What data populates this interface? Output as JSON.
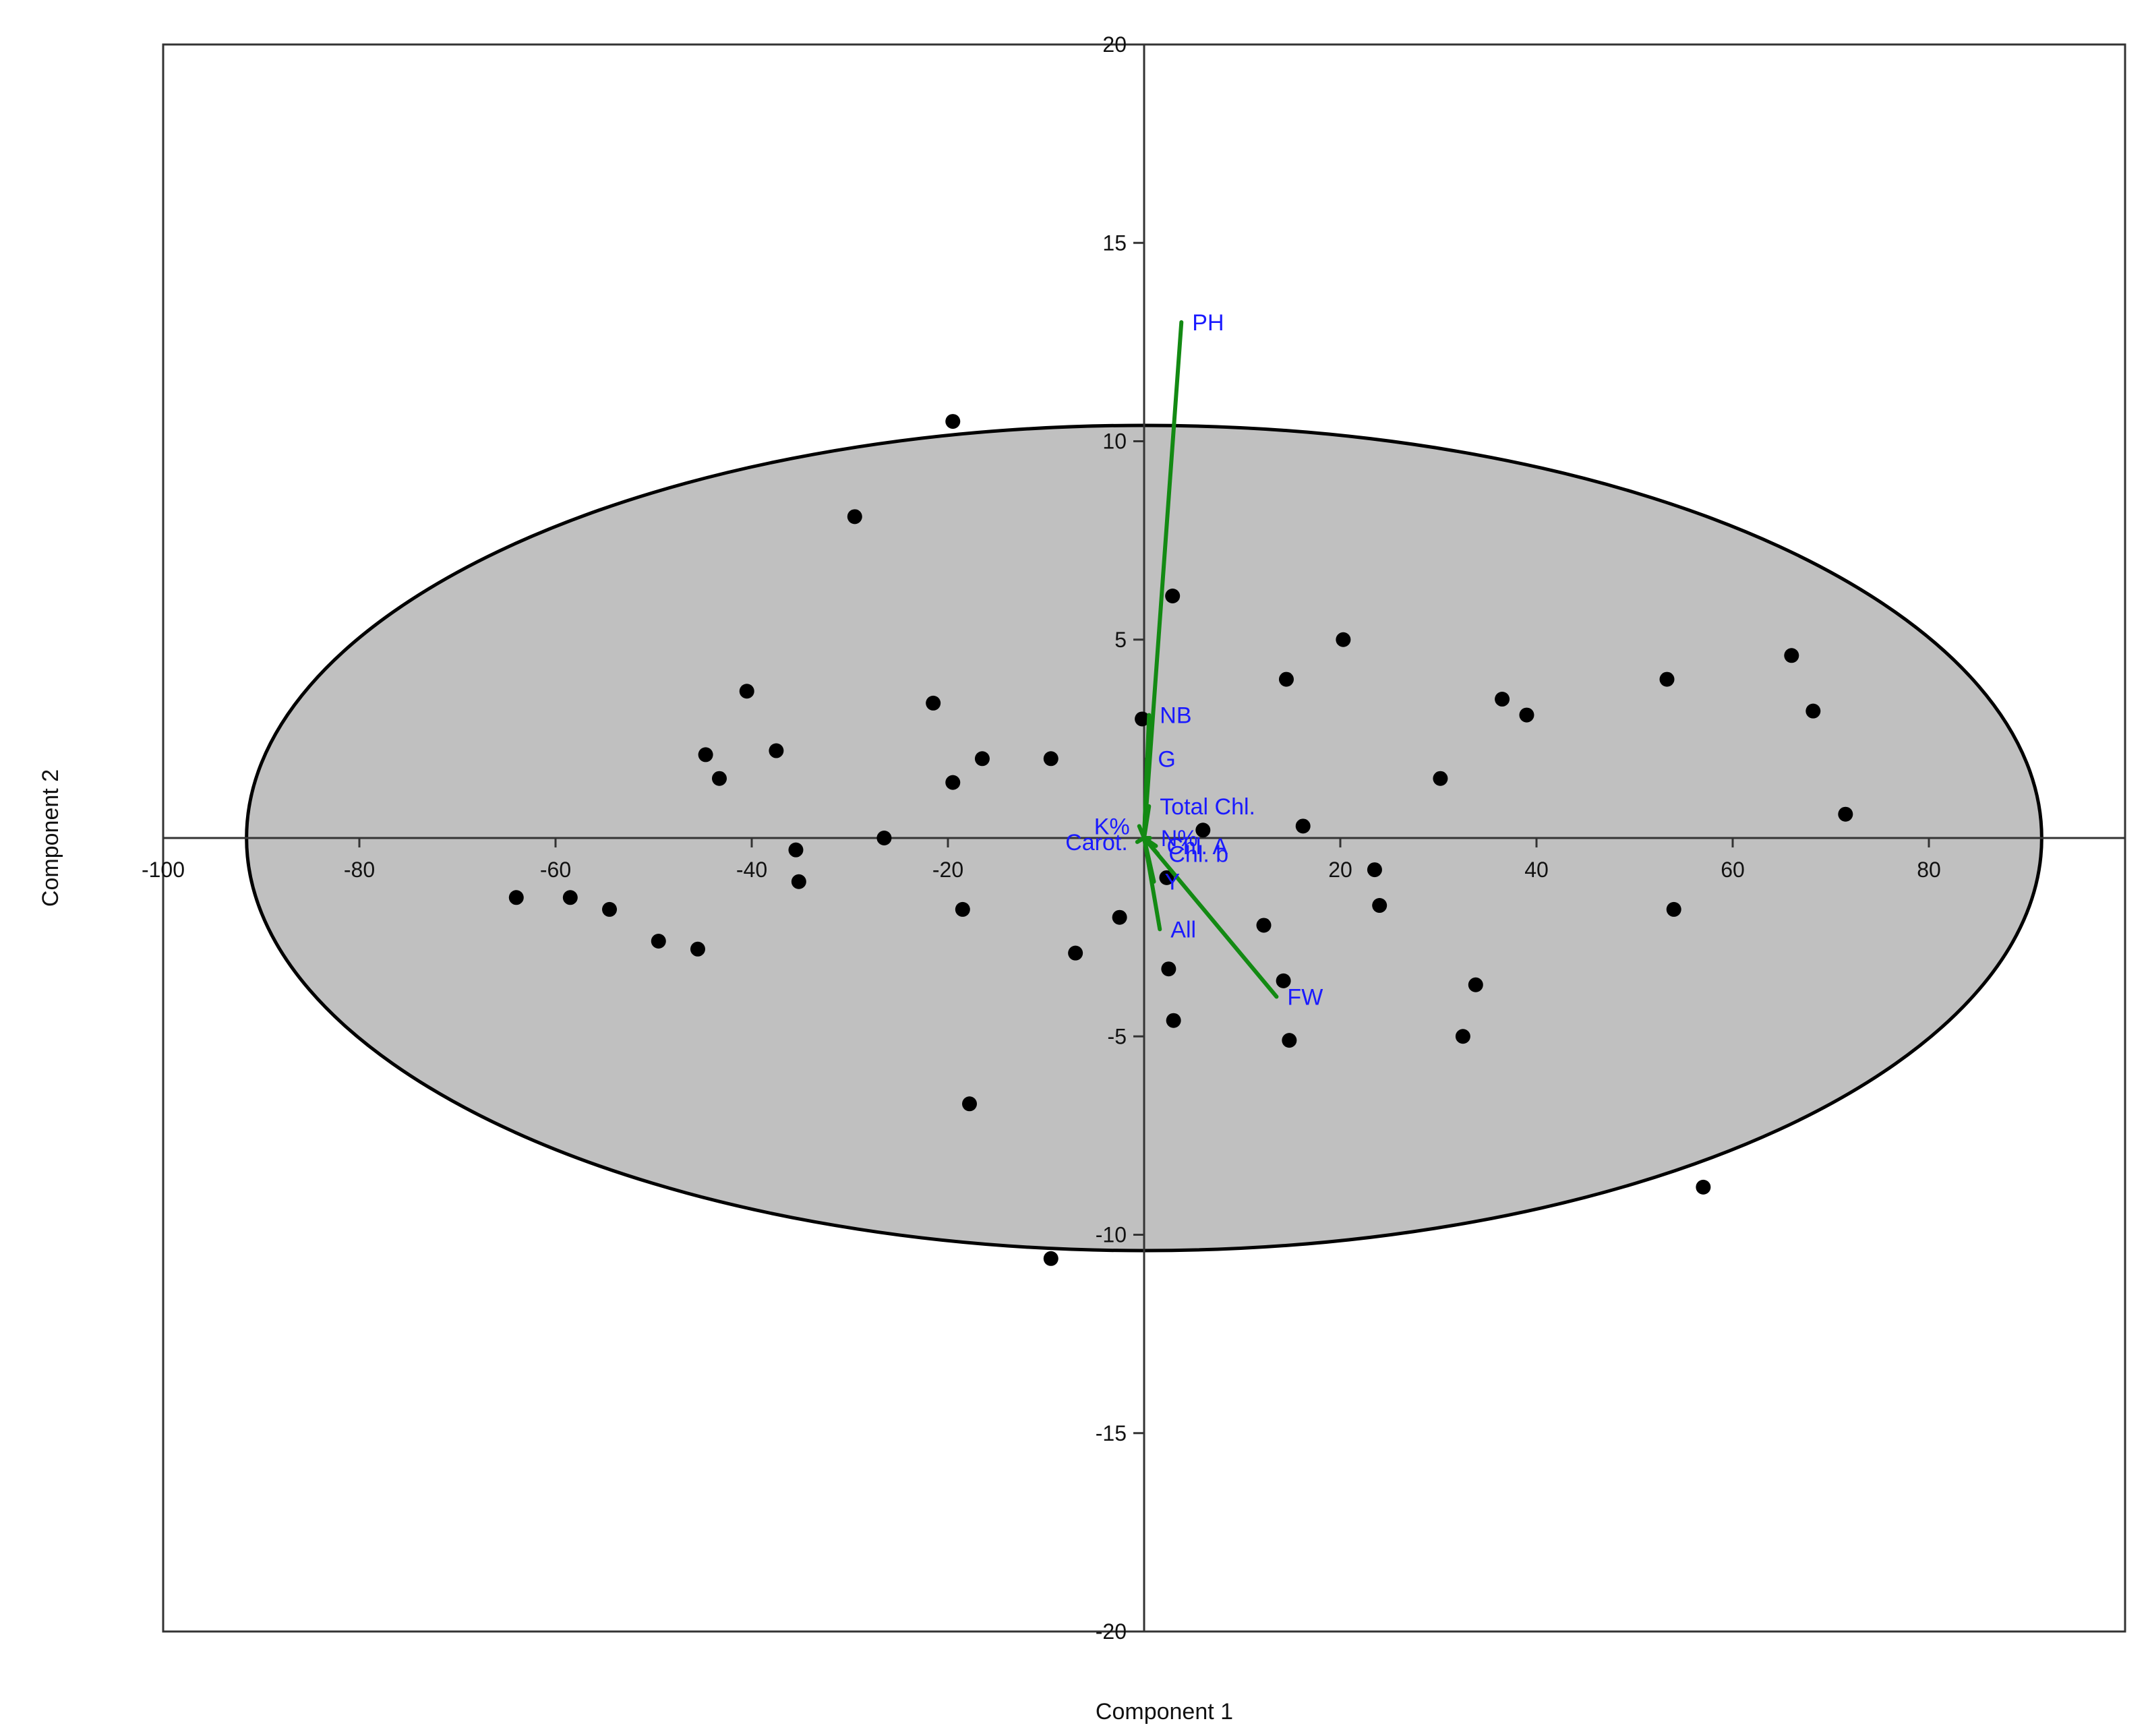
{
  "chart_data": {
    "type": "scatter",
    "title": "",
    "xlabel": "Component 1",
    "ylabel": "Component 2",
    "xlim": [
      -100,
      100
    ],
    "ylim": [
      -20,
      20
    ],
    "x_ticks": [
      -100,
      -80,
      -60,
      -40,
      -20,
      20,
      40,
      60,
      80
    ],
    "x_tick_labels": [
      "-100",
      "-80",
      "-60",
      "-40",
      "-20",
      "20",
      "40",
      "60",
      "80"
    ],
    "y_ticks": [
      -20,
      -15,
      -10,
      -5,
      5,
      10,
      15,
      20
    ],
    "y_tick_labels": [
      "-20",
      "-15",
      "-10",
      "-5",
      "5",
      "10",
      "15",
      "20"
    ],
    "grid": false,
    "legend": "none",
    "colors": {
      "points": "#000000",
      "ellipse_fill": "#c0c0c0",
      "ellipse_stroke": "#000000",
      "loading_lines": "#138a13",
      "loading_labels": "#1a1aff"
    },
    "confidence_ellipse": {
      "center": [
        0,
        0
      ],
      "semi_axis_x": 91.5,
      "semi_axis_y": 10.4
    },
    "points": [
      {
        "x": -19.5,
        "y": 10.5
      },
      {
        "x": -29.5,
        "y": 8.1
      },
      {
        "x": 2.9,
        "y": 6.1
      },
      {
        "x": 20.3,
        "y": 5.0
      },
      {
        "x": 14.5,
        "y": 4.0
      },
      {
        "x": 66.0,
        "y": 4.6
      },
      {
        "x": 53.3,
        "y": 4.0
      },
      {
        "x": 36.5,
        "y": 3.5
      },
      {
        "x": 39.0,
        "y": 3.1
      },
      {
        "x": 68.2,
        "y": 3.2
      },
      {
        "x": -40.5,
        "y": 3.7
      },
      {
        "x": -21.5,
        "y": 3.4
      },
      {
        "x": -0.2,
        "y": 3.0
      },
      {
        "x": -37.5,
        "y": 2.2
      },
      {
        "x": -44.7,
        "y": 2.1
      },
      {
        "x": -16.5,
        "y": 2.0
      },
      {
        "x": -9.5,
        "y": 2.0
      },
      {
        "x": -43.3,
        "y": 1.5
      },
      {
        "x": -19.5,
        "y": 1.4
      },
      {
        "x": 30.2,
        "y": 1.5
      },
      {
        "x": 71.5,
        "y": 0.6
      },
      {
        "x": 6.0,
        "y": 0.2
      },
      {
        "x": 16.2,
        "y": 0.3
      },
      {
        "x": -26.5,
        "y": 0.0
      },
      {
        "x": -35.5,
        "y": -0.3
      },
      {
        "x": -35.2,
        "y": -1.1
      },
      {
        "x": 23.5,
        "y": -0.8
      },
      {
        "x": 2.3,
        "y": -1.0
      },
      {
        "x": 24.0,
        "y": -1.7
      },
      {
        "x": -64.0,
        "y": -1.5
      },
      {
        "x": -58.5,
        "y": -1.5
      },
      {
        "x": -54.5,
        "y": -1.8
      },
      {
        "x": -18.5,
        "y": -1.8
      },
      {
        "x": 54.0,
        "y": -1.8
      },
      {
        "x": -2.5,
        "y": -2.0
      },
      {
        "x": 12.2,
        "y": -2.2
      },
      {
        "x": -49.5,
        "y": -2.6
      },
      {
        "x": -45.5,
        "y": -2.8
      },
      {
        "x": -7.0,
        "y": -2.9
      },
      {
        "x": 2.5,
        "y": -3.3
      },
      {
        "x": 14.2,
        "y": -3.6
      },
      {
        "x": 33.8,
        "y": -3.7
      },
      {
        "x": 3.0,
        "y": -4.6
      },
      {
        "x": 32.5,
        "y": -5.0
      },
      {
        "x": 14.8,
        "y": -5.1
      },
      {
        "x": -17.8,
        "y": -6.7
      },
      {
        "x": 57.0,
        "y": -8.8
      },
      {
        "x": -9.5,
        "y": -10.6
      }
    ],
    "loadings": [
      {
        "label": "PH",
        "x": 3.8,
        "y": 13.0
      },
      {
        "label": "NB",
        "x": 0.5,
        "y": 3.1
      },
      {
        "label": "G",
        "x": 0.3,
        "y": 2.0
      },
      {
        "label": "Total Chl.",
        "x": 0.5,
        "y": 0.8
      },
      {
        "label": "K%",
        "x": -0.5,
        "y": 0.3
      },
      {
        "label": "N%",
        "x": 0.6,
        "y": 0.0
      },
      {
        "label": "Carot.",
        "x": -0.7,
        "y": -0.1
      },
      {
        "label": "Chl. A",
        "x": 1.2,
        "y": -0.2
      },
      {
        "label": "Chl. b",
        "x": 1.4,
        "y": -0.4
      },
      {
        "label": "Y",
        "x": 1.0,
        "y": -1.1
      },
      {
        "label": "All",
        "x": 1.6,
        "y": -2.3
      },
      {
        "label": "FW",
        "x": 13.5,
        "y": -4.0
      }
    ]
  }
}
